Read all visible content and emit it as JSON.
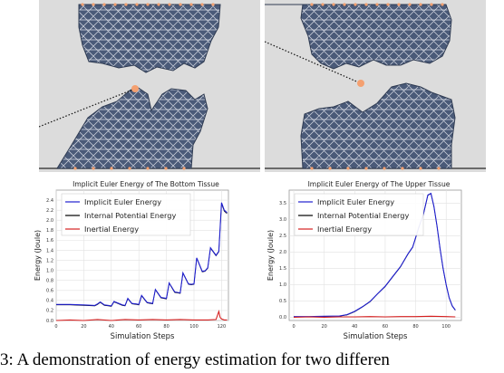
{
  "figure": {
    "caption": "3: A demonstration of energy estimation for two differen"
  },
  "sims": [
    {
      "name": "bottom-tissue-simulation"
    },
    {
      "name": "upper-tissue-simulation"
    }
  ],
  "chart_data": [
    {
      "type": "line",
      "title": "Implicit Euler Energy of The Bottom Tissue",
      "xlabel": "Simulation Steps",
      "ylabel": "Energy (Joule)",
      "xlim": [
        0,
        125
      ],
      "ylim": [
        0,
        2.6
      ],
      "xticks": [
        "0",
        "20",
        "40",
        "60",
        "80",
        "100",
        "120"
      ],
      "yticks": [
        "0.0",
        "0.2",
        "0.4",
        "0.6",
        "0.8",
        "1.0",
        "1.2",
        "1.4",
        "1.6",
        "1.8",
        "2.0",
        "2.2",
        "2.4"
      ],
      "legend_position": "top-left",
      "grid": true,
      "series": [
        {
          "name": "Implicit Euler Energy",
          "color": "#1f1fcf",
          "x": [
            0,
            10,
            20,
            28,
            30,
            32,
            35,
            38,
            40,
            42,
            48,
            50,
            52,
            55,
            58,
            60,
            62,
            66,
            68,
            70,
            72,
            76,
            78,
            80,
            82,
            86,
            88,
            90,
            92,
            96,
            98,
            100,
            102,
            106,
            108,
            110,
            112,
            116,
            118,
            120,
            122,
            124
          ],
          "y": [
            0.32,
            0.32,
            0.31,
            0.3,
            0.33,
            0.37,
            0.31,
            0.3,
            0.29,
            0.38,
            0.31,
            0.3,
            0.44,
            0.34,
            0.33,
            0.32,
            0.5,
            0.36,
            0.35,
            0.34,
            0.62,
            0.46,
            0.45,
            0.44,
            0.75,
            0.57,
            0.56,
            0.55,
            0.95,
            0.73,
            0.72,
            0.73,
            1.25,
            0.98,
            0.99,
            1.05,
            1.45,
            1.3,
            1.38,
            2.35,
            2.2,
            2.15
          ]
        },
        {
          "name": "Internal Potential Energy",
          "color": "#000000",
          "x": [
            0,
            10,
            20,
            28,
            30,
            32,
            35,
            38,
            40,
            42,
            48,
            50,
            52,
            55,
            58,
            60,
            62,
            66,
            68,
            70,
            72,
            76,
            78,
            80,
            82,
            86,
            88,
            90,
            92,
            96,
            98,
            100,
            102,
            106,
            108,
            110,
            112,
            116,
            118,
            120,
            122,
            124
          ],
          "y": [
            0.31,
            0.31,
            0.3,
            0.29,
            0.32,
            0.36,
            0.3,
            0.29,
            0.28,
            0.37,
            0.3,
            0.29,
            0.43,
            0.33,
            0.32,
            0.31,
            0.49,
            0.35,
            0.34,
            0.33,
            0.61,
            0.45,
            0.44,
            0.43,
            0.74,
            0.56,
            0.55,
            0.54,
            0.94,
            0.72,
            0.71,
            0.72,
            1.24,
            0.97,
            0.98,
            1.04,
            1.44,
            1.29,
            1.37,
            2.33,
            2.18,
            2.13
          ]
        },
        {
          "name": "Inertial Energy",
          "color": "#d62020",
          "x": [
            0,
            10,
            20,
            30,
            40,
            50,
            60,
            70,
            80,
            90,
            100,
            110,
            116,
            118,
            119,
            120,
            122,
            124
          ],
          "y": [
            0.0,
            0.01,
            0.0,
            0.02,
            0.0,
            0.02,
            0.01,
            0.02,
            0.01,
            0.02,
            0.01,
            0.01,
            0.02,
            0.18,
            0.06,
            0.03,
            0.01,
            0.01
          ]
        }
      ]
    },
    {
      "type": "line",
      "title": "Implicit Euler Energy of The Upper Tissue",
      "xlabel": "Simulation Steps",
      "ylabel": "Energy (Joule)",
      "xlim": [
        -3,
        110
      ],
      "ylim": [
        -0.1,
        3.9
      ],
      "xticks": [
        "0",
        "20",
        "40",
        "60",
        "80",
        "100"
      ],
      "yticks": [
        "0.0",
        "0.5",
        "1.0",
        "1.5",
        "2.0",
        "2.5",
        "3.0",
        "3.5"
      ],
      "legend_position": "top-left",
      "grid": true,
      "series": [
        {
          "name": "Implicit Euler Energy",
          "color": "#1f1fcf",
          "x": [
            0,
            10,
            20,
            30,
            35,
            40,
            45,
            50,
            55,
            60,
            65,
            70,
            75,
            78,
            80,
            82,
            85,
            88,
            90,
            92,
            94,
            96,
            98,
            100,
            102,
            104,
            106
          ],
          "y": [
            0.02,
            0.02,
            0.03,
            0.04,
            0.08,
            0.18,
            0.32,
            0.48,
            0.72,
            0.95,
            1.25,
            1.55,
            1.95,
            2.15,
            2.45,
            2.75,
            3.15,
            3.75,
            3.8,
            3.4,
            2.8,
            2.1,
            1.5,
            1.0,
            0.6,
            0.35,
            0.22
          ]
        },
        {
          "name": "Internal Potential Energy",
          "color": "#000000",
          "x": [
            0,
            10,
            20,
            30,
            35,
            40,
            45,
            50,
            55,
            60,
            65,
            70,
            75,
            78,
            80,
            82,
            85,
            88,
            90,
            92,
            94,
            96,
            98,
            100,
            102,
            104,
            106
          ],
          "y": [
            0.01,
            0.01,
            0.02,
            0.03,
            0.07,
            0.17,
            0.31,
            0.47,
            0.71,
            0.94,
            1.24,
            1.54,
            1.94,
            2.14,
            2.44,
            2.74,
            3.14,
            3.74,
            3.79,
            3.39,
            2.79,
            2.09,
            1.49,
            0.99,
            0.59,
            0.34,
            0.21
          ]
        },
        {
          "name": "Inertial Energy",
          "color": "#d62020",
          "x": [
            0,
            10,
            20,
            30,
            40,
            50,
            60,
            70,
            80,
            90,
            100,
            106
          ],
          "y": [
            0.0,
            0.01,
            0.0,
            0.01,
            0.01,
            0.02,
            0.01,
            0.02,
            0.02,
            0.03,
            0.02,
            0.01
          ]
        }
      ]
    }
  ]
}
